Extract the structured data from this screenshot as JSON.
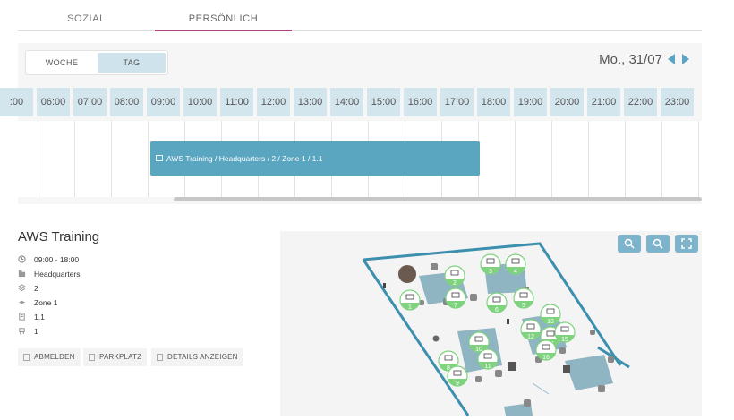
{
  "tabs": [
    {
      "label": "SOZIAL"
    },
    {
      "label": "PERSÖNLICH"
    }
  ],
  "view_toggle": {
    "week": "WOCHE",
    "day": "TAG"
  },
  "date": "Mo., 31/07",
  "hours": [
    ":00",
    "06:00",
    "07:00",
    "08:00",
    "09:00",
    "10:00",
    "11:00",
    "12:00",
    "13:00",
    "14:00",
    "15:00",
    "16:00",
    "17:00",
    "18:00",
    "19:00",
    "20:00",
    "21:00",
    "22:00",
    "23:00"
  ],
  "booking": {
    "label": "AWS Training / Headquarters / 2 / Zone 1 / 1.1"
  },
  "details": {
    "title": "AWS Training",
    "time": "09:00 - 18:00",
    "building": "Headquarters",
    "floor": "2",
    "zone": "Zone 1",
    "desk": "1.1",
    "seat": "1"
  },
  "actions": {
    "cancel": "ABMELDEN",
    "parking": "PARKPLATZ",
    "details": "DETAILS ANZEIGEN"
  },
  "map": {
    "desk_numbers": [
      "1",
      "2",
      "3",
      "4",
      "5",
      "6",
      "7",
      "8",
      "9",
      "10",
      "11",
      "12",
      "13",
      "14",
      "15",
      "16"
    ],
    "colors": {
      "wall": "#3d8fae",
      "desk": "#8fb4c2",
      "seat_free": "#7fd37f"
    }
  }
}
